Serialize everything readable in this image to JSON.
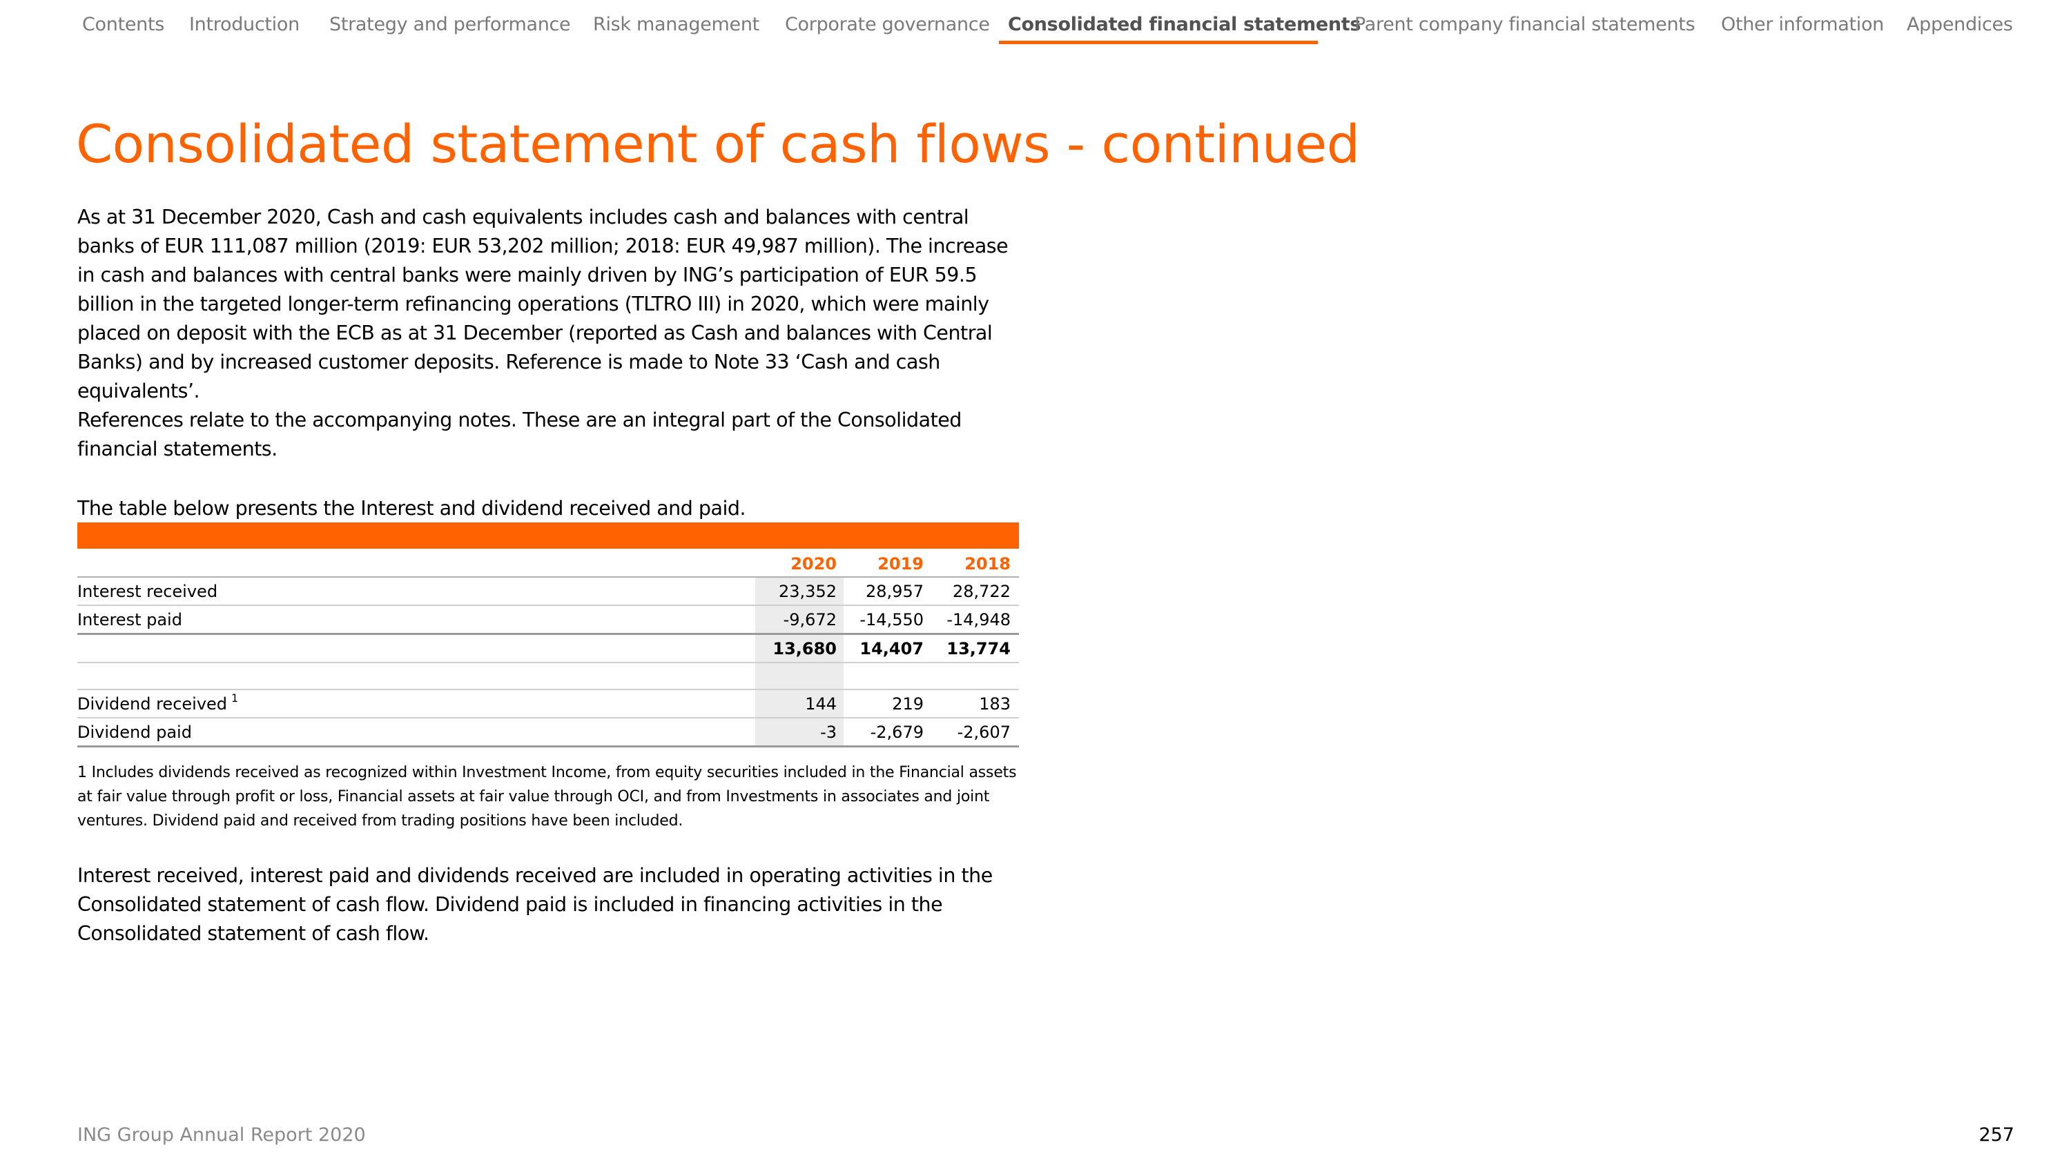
{
  "nav": {
    "items": [
      {
        "label": "Contents"
      },
      {
        "label": "Introduction"
      },
      {
        "label": "Strategy and performance"
      },
      {
        "label": "Risk management"
      },
      {
        "label": "Corporate governance"
      },
      {
        "label": "Consolidated financial statements",
        "active": true
      },
      {
        "label": "Parent company financial statements"
      },
      {
        "label": "Other information"
      },
      {
        "label": "Appendices"
      }
    ]
  },
  "title": "Consolidated statement of cash flows - continued",
  "paragraphs": {
    "p1": "As at 31 December 2020, Cash and cash equivalents includes cash and balances with central banks of EUR 111,087 million (2019: EUR 53,202 million; 2018: EUR 49,987 million). The increase in cash and balances with central banks were mainly driven by ING’s participation of EUR 59.5 billion in the targeted longer-term refinancing operations (TLTRO III) in 2020, which were mainly placed on deposit with the ECB as at 31 December (reported as Cash and balances with Central Banks) and by increased customer deposits. Reference is made to Note 33 ‘Cash and cash equivalents’.",
    "p2": "References relate to the accompanying notes. These are an integral part of the Consolidated financial statements.",
    "p3": "The table below presents the Interest and dividend received and paid.",
    "p4": "Interest received, interest paid and dividends received are included in operating activities in the Consolidated statement of cash flow. Dividend paid is included in financing activities in the Consolidated statement of cash flow."
  },
  "table": {
    "columns": [
      "2020",
      "2019",
      "2018"
    ],
    "rows": {
      "interest_received": {
        "label": "Interest received",
        "values": [
          "23,352",
          "28,957",
          "28,722"
        ]
      },
      "interest_paid": {
        "label": "Interest paid",
        "values": [
          "-9,672",
          "-14,550",
          "-14,948"
        ]
      },
      "interest_total": {
        "label": "",
        "values": [
          "13,680",
          "14,407",
          "13,774"
        ]
      },
      "dividend_received": {
        "label": "Dividend received",
        "footnote_ref": "1",
        "values": [
          "144",
          "219",
          "183"
        ]
      },
      "dividend_paid": {
        "label": "Dividend paid",
        "values": [
          "-3",
          "-2,679",
          "-2,607"
        ]
      }
    }
  },
  "footnote": "1  Includes dividends received as recognized within Investment Income, from equity securities included in the Financial assets at fair value through profit or loss, Financial assets at fair value through OCI, and from Investments in associates and joint ventures. Dividend paid and received from trading positions have been included.",
  "footer": {
    "report": "ING Group Annual Report 2020",
    "page": "257"
  },
  "colors": {
    "accent": "#ff6200",
    "nav_text": "#7a7a7a",
    "nav_active": "#525252",
    "shade": "#ececec"
  }
}
